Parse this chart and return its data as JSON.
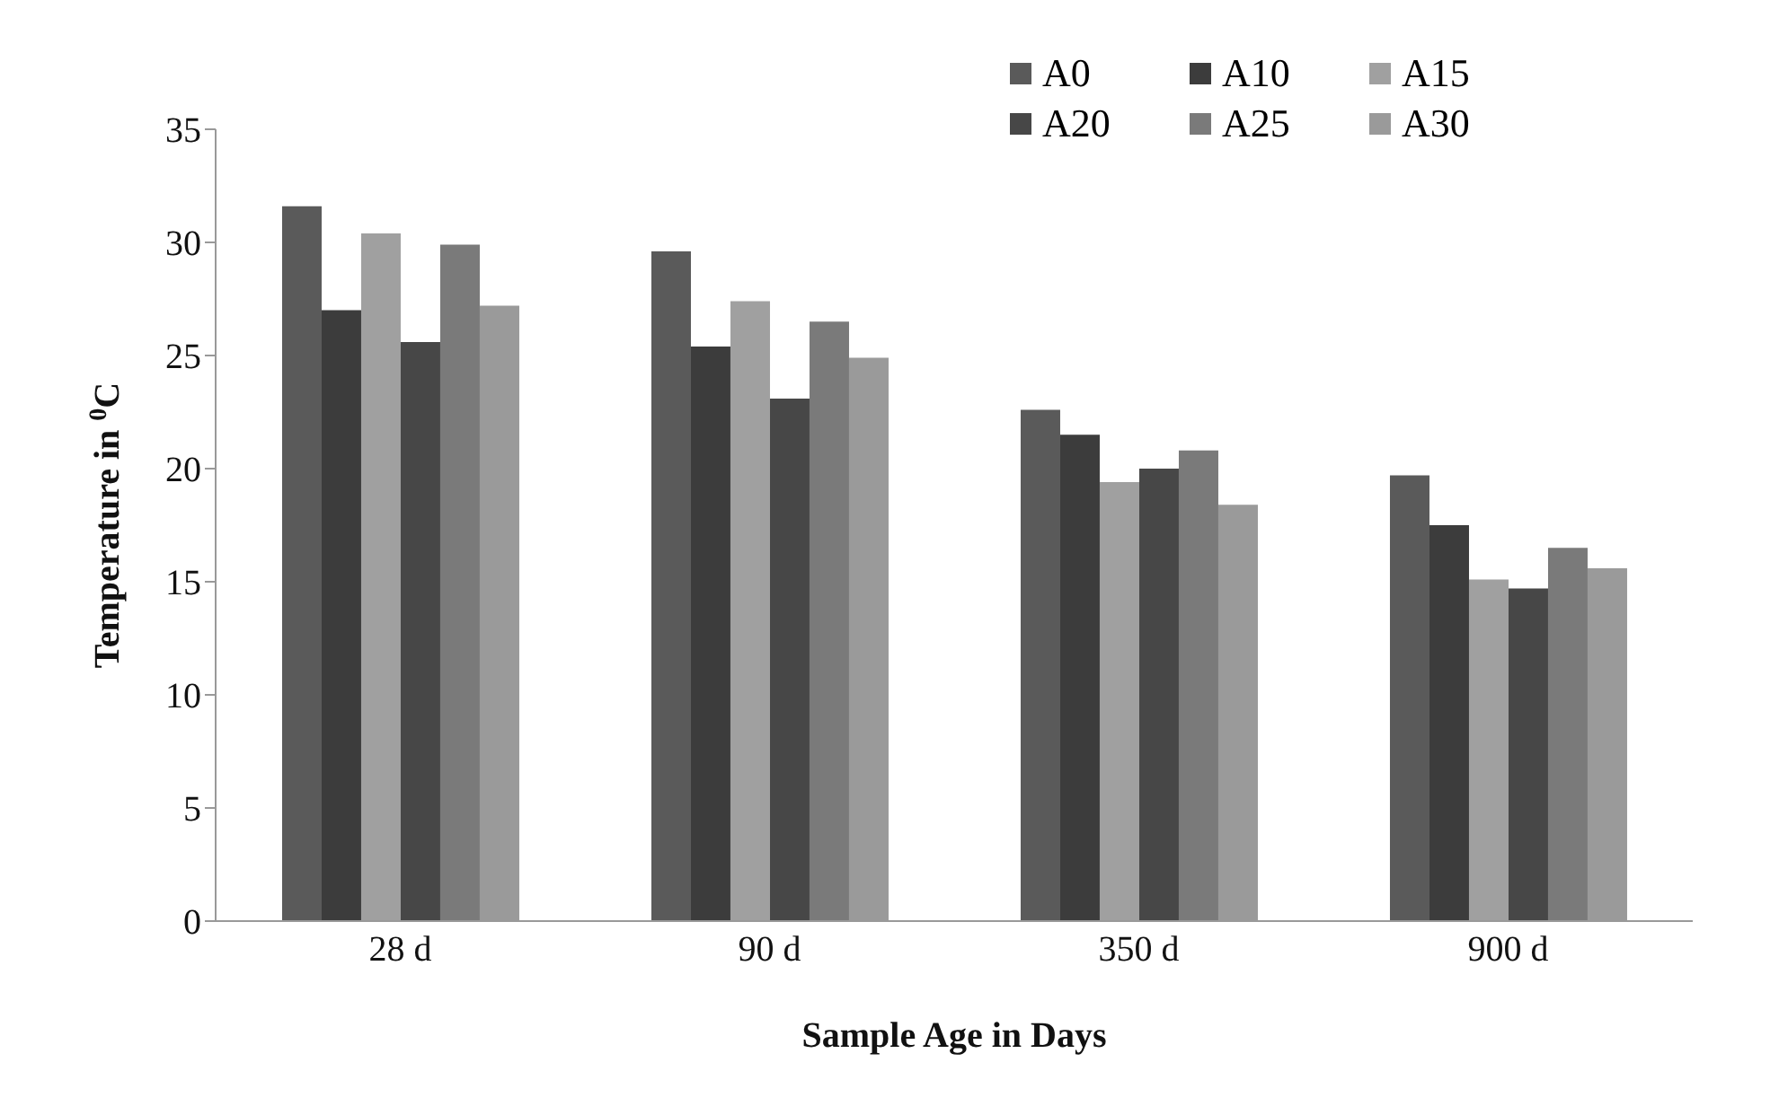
{
  "chart_data": {
    "type": "bar",
    "xlabel": "Sample Age in  Days",
    "ylabel": "Temperature  in $^{0}$C",
    "categories": [
      "28 d",
      "90 d",
      "350 d",
      "900 d"
    ],
    "series": [
      {
        "name": "A0",
        "color": "#5a5a5a",
        "values": [
          31.6,
          29.6,
          22.6,
          19.7
        ]
      },
      {
        "name": "A10",
        "color": "#3c3c3c",
        "values": [
          27.0,
          25.4,
          21.5,
          17.5
        ]
      },
      {
        "name": "A15",
        "color": "#a0a0a0",
        "values": [
          30.4,
          27.4,
          19.4,
          15.1
        ]
      },
      {
        "name": "A20",
        "color": "#474747",
        "values": [
          25.6,
          23.1,
          20.0,
          14.7
        ]
      },
      {
        "name": "A25",
        "color": "#7a7a7a",
        "values": [
          29.9,
          26.5,
          20.8,
          16.5
        ]
      },
      {
        "name": "A30",
        "color": "#9a9a9a",
        "values": [
          27.2,
          24.9,
          18.4,
          15.6
        ]
      }
    ],
    "ylim": [
      0,
      35
    ],
    "yticks": [
      0,
      5,
      10,
      15,
      20,
      25,
      30,
      35
    ],
    "grid": false,
    "legend": "top right"
  }
}
